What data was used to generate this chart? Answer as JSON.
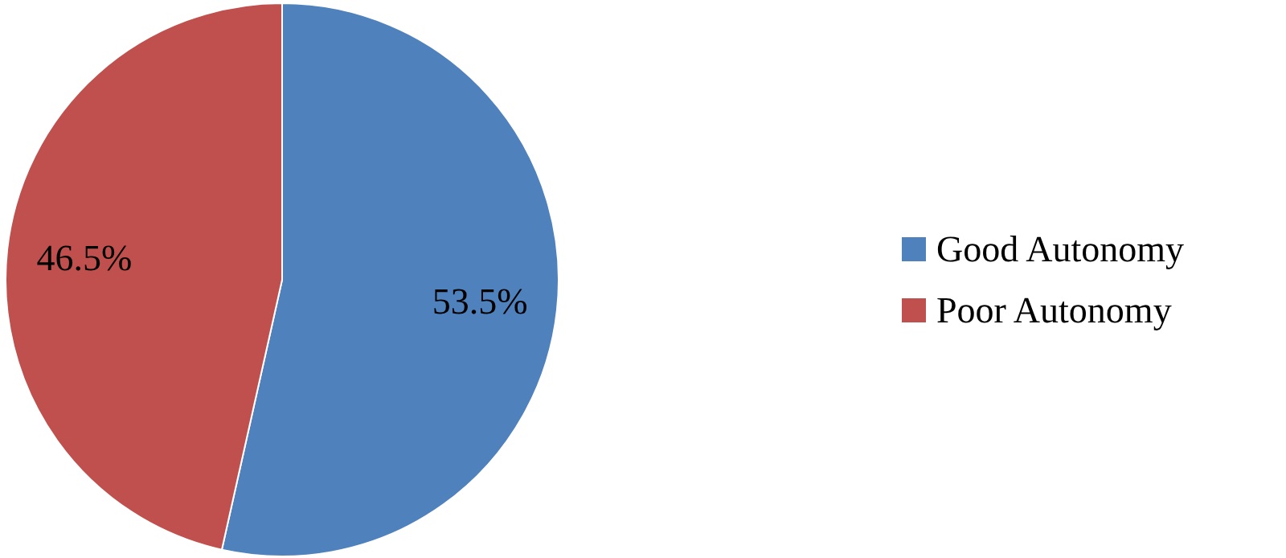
{
  "chart_data": {
    "type": "pie",
    "categories": [
      "Good Autonomy",
      "Poor Autonomy"
    ],
    "values": [
      53.5,
      46.5
    ],
    "colors": [
      "#4f81bd",
      "#c0504d"
    ],
    "value_labels": [
      "53.5%",
      "46.5%"
    ],
    "legend": "right"
  }
}
